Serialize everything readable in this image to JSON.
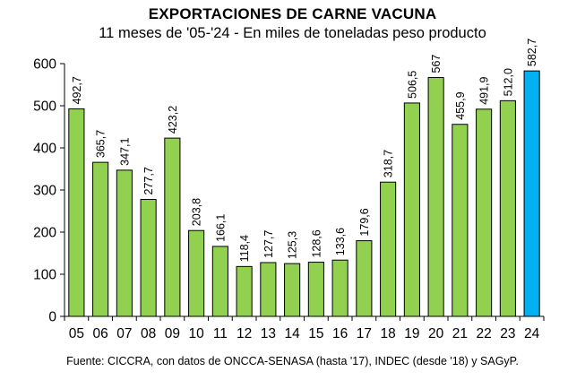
{
  "chart_data": {
    "type": "bar",
    "title": "EXPORTACIONES DE CARNE VACUNA",
    "subtitle": "11 meses de '05-'24 - En miles de toneladas peso producto",
    "categories": [
      "05",
      "06",
      "07",
      "08",
      "09",
      "10",
      "11",
      "12",
      "13",
      "14",
      "15",
      "16",
      "17",
      "18",
      "19",
      "20",
      "21",
      "22",
      "23",
      "24"
    ],
    "values": [
      492.7,
      365.7,
      347.1,
      277.7,
      423.2,
      203.8,
      166.1,
      118.4,
      127.7,
      125.3,
      128.6,
      133.6,
      179.6,
      318.7,
      506.5,
      567,
      455.9,
      491.9,
      512.0,
      582.7
    ],
    "value_labels": [
      "492,7",
      "365,7",
      "347,1",
      "277,7",
      "423,2",
      "203,8",
      "166,1",
      "118,4",
      "127,7",
      "125,3",
      "128,6",
      "133,6",
      "179,6",
      "318,7",
      "506,5",
      "567",
      "455,9",
      "491,9",
      "512,0",
      "582,7"
    ],
    "ylim": [
      0,
      600
    ],
    "yticks": [
      0,
      100,
      200,
      300,
      400,
      500,
      600
    ],
    "ytick_labels": [
      "0",
      "100",
      "200",
      "300",
      "400",
      "500",
      "600"
    ],
    "xlabel": "",
    "ylabel": "",
    "grid": false,
    "colors": {
      "default": "#92D050",
      "highlight": "#00B0F0",
      "edge": "#000000"
    },
    "highlight_index": 19
  },
  "source": "Fuente: CICCRA, con datos de ONCCA-SENASA (hasta '17), INDEC (desde '18) y SAGyP."
}
